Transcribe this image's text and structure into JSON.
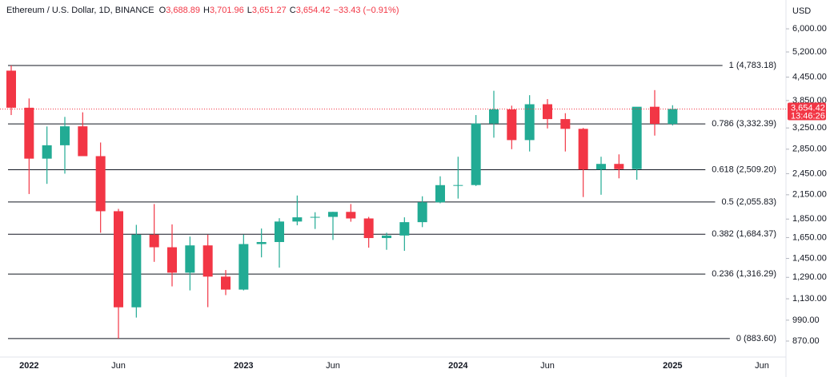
{
  "header": {
    "symbol": "Ethereum / U.S. Dollar, 1D, BINANCE",
    "ohlc": [
      {
        "key": "O",
        "value": "3,688.89"
      },
      {
        "key": "H",
        "value": "3,701.96"
      },
      {
        "key": "L",
        "value": "3,651.27"
      },
      {
        "key": "C",
        "value": "3,654.42"
      }
    ],
    "change": "−33.43 (−0.91%)",
    "currency": "USD"
  },
  "chart_data": {
    "type": "candlestick",
    "log_scale": true,
    "up_color": "#22ab94",
    "down_color": "#f23645",
    "categories": [
      null,
      "2022",
      null,
      null,
      null,
      null,
      "Jun",
      null,
      null,
      null,
      null,
      null,
      null,
      "2023",
      null,
      null,
      null,
      null,
      "Jun",
      null,
      null,
      null,
      null,
      null,
      null,
      "2024",
      null,
      null,
      null,
      null,
      "Jun",
      null,
      null,
      null,
      null,
      null,
      null,
      "2025",
      null,
      null,
      null,
      null,
      "Jun"
    ],
    "open": [
      4632,
      3683,
      2688,
      2920,
      3283,
      2730,
      1942,
      1072,
      1680,
      1554,
      1328,
      1572,
      1296,
      1196,
      1585,
      1605,
      1822,
      1870,
      1875,
      1934,
      1857,
      1645,
      1671,
      1815,
      2052,
      2282,
      2283,
      3340,
      3646,
      3015,
      3763,
      3433,
      3232,
      2513,
      2602,
      2519,
      3705,
      3332,
      null,
      null,
      null,
      null,
      null
    ],
    "high": [
      4783,
      3900,
      3280,
      3480,
      3580,
      2970,
      1970,
      1785,
      2030,
      1790,
      1660,
      1680,
      1350,
      1680,
      1745,
      1860,
      2140,
      1930,
      1935,
      2030,
      1875,
      1700,
      1870,
      2130,
      2410,
      2720,
      3520,
      4090,
      3730,
      3980,
      3885,
      3560,
      3250,
      2720,
      2760,
      3680,
      4107,
      3740,
      null,
      null,
      null,
      null,
      null
    ],
    "low": [
      3520,
      2160,
      2300,
      2450,
      2780,
      1700,
      883.6,
      1006,
      1420,
      1220,
      1190,
      1073,
      1156,
      1190,
      1460,
      1370,
      1780,
      1740,
      1626,
      1820,
      1550,
      1530,
      1520,
      1760,
      2040,
      2100,
      2270,
      3060,
      2850,
      2810,
      3240,
      2810,
      2120,
      2150,
      2380,
      2360,
      3100,
      3300,
      null,
      null,
      null,
      null,
      null
    ],
    "close": [
      3683,
      2688,
      2920,
      3283,
      2730,
      1942,
      1072,
      1680,
      1554,
      1328,
      1572,
      1296,
      1196,
      1585,
      1605,
      1822,
      1870,
      1875,
      1934,
      1857,
      1645,
      1671,
      1815,
      2052,
      2282,
      2283,
      3340,
      3646,
      3015,
      3763,
      3433,
      3232,
      2513,
      2602,
      2519,
      3705,
      3332,
      3654.42,
      null,
      null,
      null,
      null,
      null
    ],
    "ylim": [
      796,
      7170
    ],
    "yticks": [
      {
        "value": 870,
        "label": "870.00"
      },
      {
        "value": 990,
        "label": "990.00"
      },
      {
        "value": 1130,
        "label": "1,130.00"
      },
      {
        "value": 1290,
        "label": "1,290.00"
      },
      {
        "value": 1450,
        "label": "1,450.00"
      },
      {
        "value": 1650,
        "label": "1,650.00"
      },
      {
        "value": 1850,
        "label": "1,850.00"
      },
      {
        "value": 2150,
        "label": "2,150.00"
      },
      {
        "value": 2450,
        "label": "2,450.00"
      },
      {
        "value": 2850,
        "label": "2,850.00"
      },
      {
        "value": 3250,
        "label": "3,250.00"
      },
      {
        "value": 3850,
        "label": "3,850.00"
      },
      {
        "value": 4450,
        "label": "4,450.00"
      },
      {
        "value": 5200,
        "label": "5,200.00"
      },
      {
        "value": 6000,
        "label": "6,000.00"
      }
    ],
    "fib_levels": [
      {
        "value": 4783.18,
        "label": "1 (4,783.18)"
      },
      {
        "value": 3332.39,
        "label": "0.786 (3,332.39)"
      },
      {
        "value": 2509.2,
        "label": "0.618 (2,509.20)"
      },
      {
        "value": 2055.83,
        "label": "0.5 (2,055.83)"
      },
      {
        "value": 1684.37,
        "label": "0.382 (1,684.37)"
      },
      {
        "value": 1316.29,
        "label": "0.236 (1,316.29)"
      },
      {
        "value": 883.6,
        "label": "0 (883.60)"
      }
    ],
    "last_price": {
      "value": 3654.42,
      "label": "3,654.42",
      "countdown": "13:46:26"
    }
  }
}
